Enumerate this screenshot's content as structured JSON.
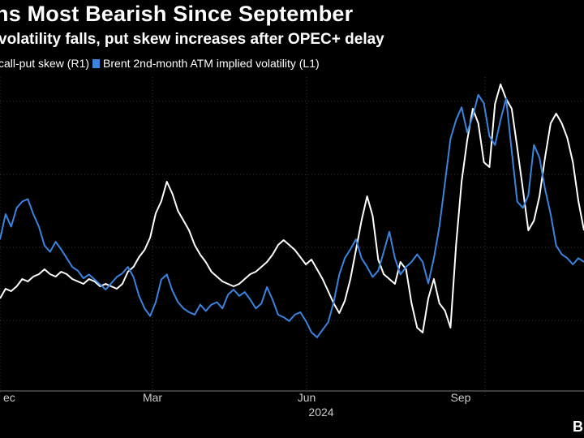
{
  "title": "ns Most Bearish Since September",
  "subtitle": " volatility falls, put skew increases after OPEC+ delay",
  "brand": "Bl",
  "colors": {
    "background": "#000000",
    "grid": "#3a3a3a",
    "skew": "#ffffff",
    "vol": "#3a84e0"
  },
  "chart_data": {
    "type": "line",
    "title": "ns Most Bearish Since September",
    "subtitle": " volatility falls, put skew increases after OPEC+ delay",
    "xlabel": "",
    "x_ticks": [
      "ec",
      "Mar",
      "Jun",
      "Sep"
    ],
    "x_year_label": "2024",
    "legend_position": "top-left",
    "grid": true,
    "y_gridlines": 5,
    "series": [
      {
        "name": "call-put skew (R1)",
        "axis": "right",
        "color": "#ffffff",
        "values": [
          0.3,
          0.34,
          0.33,
          0.35,
          0.38,
          0.37,
          0.39,
          0.4,
          0.42,
          0.4,
          0.39,
          0.41,
          0.4,
          0.38,
          0.37,
          0.36,
          0.38,
          0.37,
          0.35,
          0.36,
          0.35,
          0.34,
          0.36,
          0.41,
          0.43,
          0.47,
          0.5,
          0.55,
          0.65,
          0.7,
          0.78,
          0.73,
          0.66,
          0.62,
          0.58,
          0.52,
          0.48,
          0.45,
          0.41,
          0.39,
          0.37,
          0.36,
          0.35,
          0.36,
          0.38,
          0.4,
          0.41,
          0.43,
          0.45,
          0.48,
          0.52,
          0.54,
          0.52,
          0.5,
          0.47,
          0.44,
          0.46,
          0.42,
          0.38,
          0.33,
          0.28,
          0.24,
          0.29,
          0.38,
          0.5,
          0.62,
          0.72,
          0.64,
          0.46,
          0.4,
          0.38,
          0.36,
          0.45,
          0.42,
          0.28,
          0.18,
          0.16,
          0.3,
          0.38,
          0.28,
          0.25,
          0.18,
          0.52,
          0.78,
          0.95,
          1.08,
          1.02,
          0.86,
          0.84,
          1.1,
          1.18,
          1.12,
          1.08,
          0.92,
          0.75,
          0.58,
          0.62,
          0.72,
          0.88,
          1.02,
          1.06,
          1.02,
          0.96,
          0.86,
          0.7,
          0.58
        ]
      },
      {
        "name": "Brent 2nd-month ATM implied volatility (L1)",
        "axis": "left",
        "color": "#3a84e0",
        "values": [
          30.0,
          32.0,
          31.0,
          32.5,
          33.0,
          33.2,
          32.0,
          31.0,
          29.5,
          29.0,
          29.8,
          29.2,
          28.5,
          27.8,
          27.5,
          26.9,
          27.2,
          26.8,
          26.4,
          26.0,
          26.5,
          27.0,
          27.3,
          27.8,
          27.0,
          25.5,
          24.5,
          23.9,
          25.0,
          26.8,
          27.2,
          25.9,
          25.0,
          24.5,
          24.2,
          24.0,
          24.8,
          24.3,
          24.8,
          25.0,
          24.5,
          25.6,
          26.0,
          25.5,
          25.8,
          25.2,
          24.5,
          24.9,
          26.2,
          25.2,
          24.0,
          23.8,
          23.5,
          24.0,
          24.2,
          23.5,
          22.6,
          22.2,
          22.8,
          23.4,
          25.0,
          27.2,
          28.5,
          29.2,
          30.0,
          28.5,
          27.8,
          27.0,
          27.5,
          29.0,
          30.6,
          28.5,
          27.2,
          27.8,
          28.2,
          28.8,
          28.2,
          26.5,
          28.5,
          31.0,
          34.5,
          38.0,
          39.5,
          40.5,
          38.5,
          39.8,
          41.5,
          40.8,
          38.2,
          37.5,
          39.5,
          41.2,
          37.0,
          33.0,
          32.5,
          33.5,
          37.5,
          36.5,
          34.0,
          32.0,
          29.5,
          28.8,
          28.5,
          28.0,
          28.5,
          28.2
        ]
      }
    ]
  }
}
